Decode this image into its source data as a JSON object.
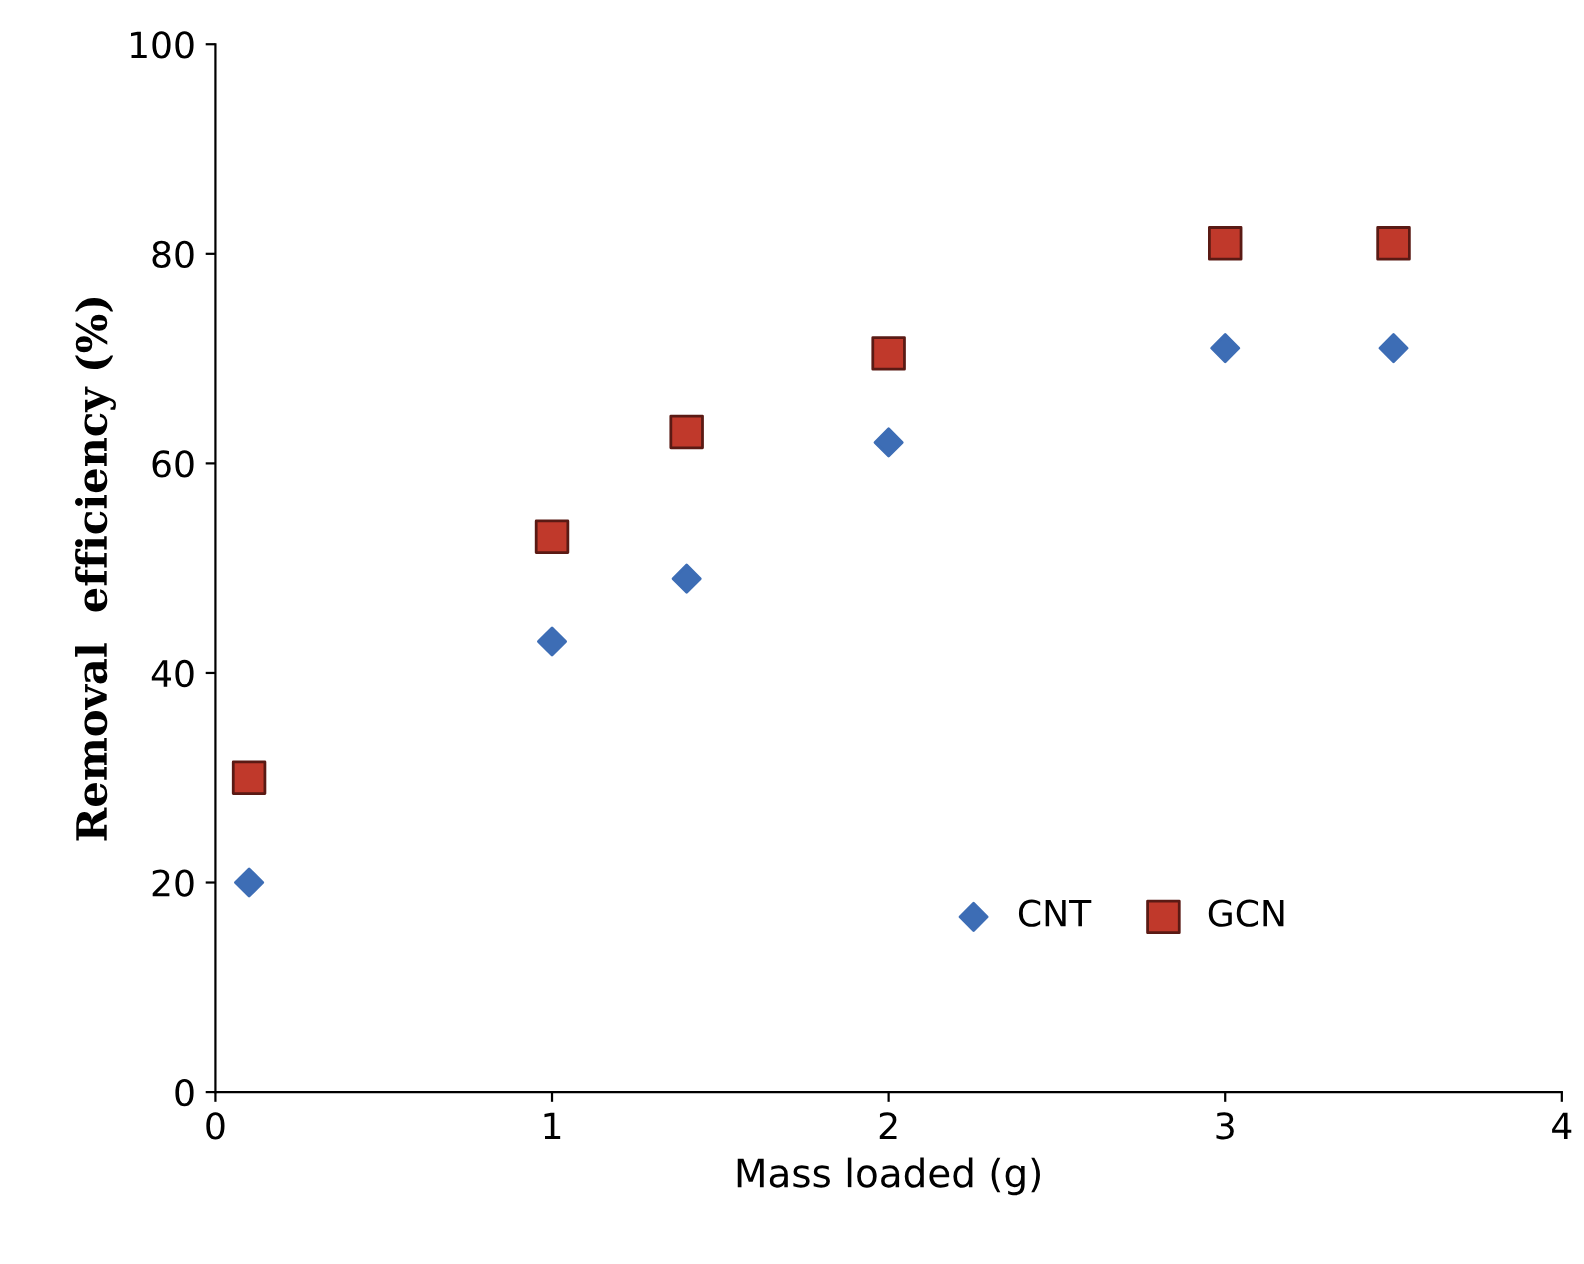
{
  "chart_data": {
    "type": "scatter",
    "xlabel": "Mass loaded (g)",
    "ylabel": "Removal  efficiency (%)",
    "series": [
      {
        "name": "CNT",
        "color": "#3d6db5",
        "marker": "diamond",
        "x": [
          0.1,
          1,
          1.4,
          2,
          3,
          3.5
        ],
        "values": [
          20,
          43,
          49,
          62,
          71,
          71
        ]
      },
      {
        "name": "GCN",
        "color": "#c0392b",
        "marker": "square",
        "x": [
          0.1,
          1,
          1.4,
          2,
          3,
          3.5
        ],
        "values": [
          30,
          53,
          63,
          70.5,
          81,
          81
        ]
      }
    ],
    "xlim": [
      0,
      4
    ],
    "xticks": [
      0,
      1,
      2,
      3,
      4
    ],
    "ylim": [
      0,
      100
    ],
    "yticks": [
      0,
      20,
      40,
      60,
      80,
      100
    ],
    "grid": false,
    "legend": "bottom right"
  }
}
